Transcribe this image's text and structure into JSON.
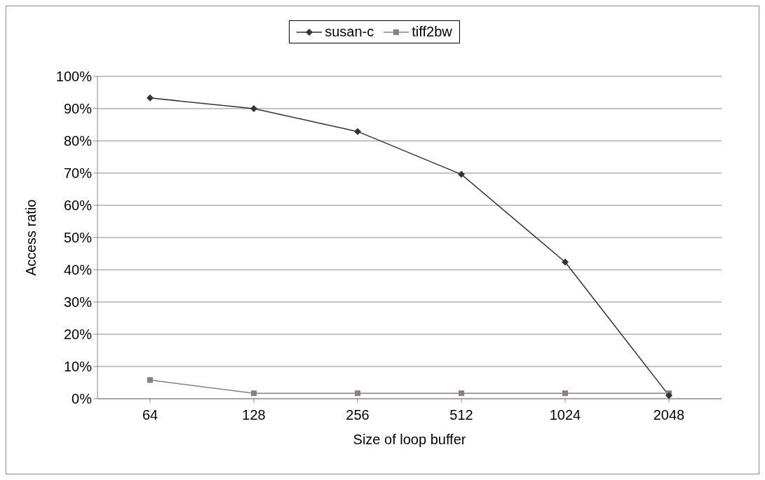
{
  "chart_data": {
    "type": "line",
    "xlabel": "Size of loop buffer",
    "ylabel": "Access ratio",
    "categories": [
      "64",
      "128",
      "256",
      "512",
      "1024",
      "2048"
    ],
    "series": [
      {
        "name": "susan-c",
        "color": "#333333",
        "marker": "diamond",
        "values": [
          93.3,
          90,
          82.9,
          69.6,
          42.4,
          1
        ]
      },
      {
        "name": "tiff2bw",
        "color": "#8c7f7f",
        "marker": "square",
        "values": [
          5.8,
          1.7,
          1.7,
          1.7,
          1.7,
          1.7
        ]
      }
    ],
    "ylim": [
      0,
      100
    ],
    "yticks": [
      {
        "value": 0,
        "label": "0%"
      },
      {
        "value": 10,
        "label": "10%"
      },
      {
        "value": 20,
        "label": "20%"
      },
      {
        "value": 30,
        "label": "30%"
      },
      {
        "value": 40,
        "label": "40%"
      },
      {
        "value": 50,
        "label": "50%"
      },
      {
        "value": 60,
        "label": "60%"
      },
      {
        "value": 70,
        "label": "70%"
      },
      {
        "value": 80,
        "label": "80%"
      },
      {
        "value": 90,
        "label": "90%"
      },
      {
        "value": 100,
        "label": "100%"
      }
    ],
    "grid": "y",
    "legend": "top"
  }
}
